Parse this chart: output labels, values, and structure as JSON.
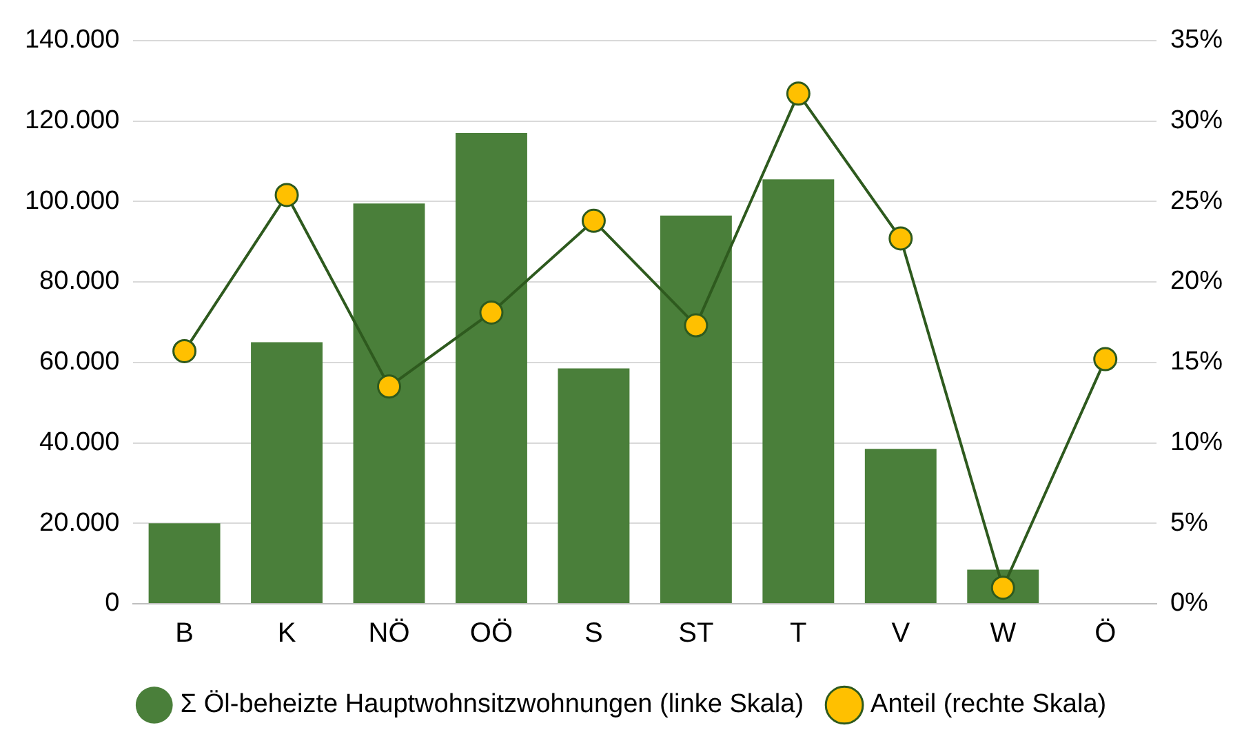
{
  "chart_data": {
    "type": "bar",
    "categories": [
      "B",
      "K",
      "NÖ",
      "OÖ",
      "S",
      "ST",
      "T",
      "V",
      "W",
      "Ö"
    ],
    "series": [
      {
        "name": "Σ Öl-beheizte Hauptwohnsitzwohnungen (linke Skala)",
        "color": "#4a7f3a",
        "values": [
          20000,
          65000,
          99500,
          117000,
          58500,
          96500,
          105500,
          38500,
          8500,
          null
        ]
      },
      {
        "name": "Anteil (rechte Skala)",
        "type": "line",
        "axis": "y2",
        "color": "#2e5a1e",
        "marker": "circle",
        "values": [
          15.7,
          25.4,
          13.5,
          18.1,
          23.8,
          17.3,
          31.7,
          22.7,
          1.0,
          15.2
        ]
      }
    ],
    "ylim": [
      0,
      140000
    ],
    "yticks": [
      {
        "value": 0,
        "label": "0"
      },
      {
        "value": 20000,
        "label": "20.000"
      },
      {
        "value": 40000,
        "label": "40.000"
      },
      {
        "value": 60000,
        "label": "60.000"
      },
      {
        "value": 80000,
        "label": "80.000"
      },
      {
        "value": 100000,
        "label": "100.000"
      },
      {
        "value": 120000,
        "label": "120.000"
      },
      {
        "value": 140000,
        "label": "140.000"
      }
    ],
    "y2lim": [
      0,
      35
    ],
    "y2ticks": [
      {
        "value": 0,
        "label": "0%"
      },
      {
        "value": 5,
        "label": "5%"
      },
      {
        "value": 10,
        "label": "10%"
      },
      {
        "value": 15,
        "label": "15%"
      },
      {
        "value": 20,
        "label": "20%"
      },
      {
        "value": 25,
        "label": "25%"
      },
      {
        "value": 30,
        "label": "30%"
      },
      {
        "value": 35,
        "label": "35%"
      }
    ],
    "grid": "y",
    "legend": "bottom"
  }
}
